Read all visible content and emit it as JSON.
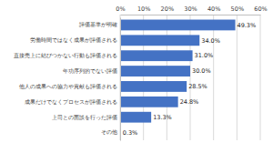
{
  "chart_data": {
    "type": "bar",
    "orientation": "horizontal",
    "categories": [
      "評価基準が明確",
      "労働時間ではなく成果が評価される",
      "直接売上に結びつかない行動も評価される",
      "年功序列的でない評価",
      "他人の成果への協力や貢献も評価される",
      "成果だけでなくプロセスが評価される",
      "上司との面談を行った評価",
      "その他"
    ],
    "values": [
      49.3,
      34.0,
      31.0,
      30.0,
      28.5,
      24.8,
      13.3,
      0.3
    ],
    "value_labels": [
      "49.3%",
      "34.0%",
      "31.0%",
      "30.0%",
      "28.5%",
      "24.8%",
      "13.3%",
      "0.3%"
    ],
    "color": "#4472c4",
    "xlim": [
      0,
      60
    ],
    "xticks": [
      {
        "value": 0,
        "label": "0%"
      },
      {
        "value": 10,
        "label": "10%"
      },
      {
        "value": 20,
        "label": "20%"
      },
      {
        "value": 30,
        "label": "30%"
      },
      {
        "value": 40,
        "label": "40%"
      },
      {
        "value": 50,
        "label": "50%"
      },
      {
        "value": 60,
        "label": "60%"
      }
    ],
    "grid": true,
    "data_labels": true
  }
}
